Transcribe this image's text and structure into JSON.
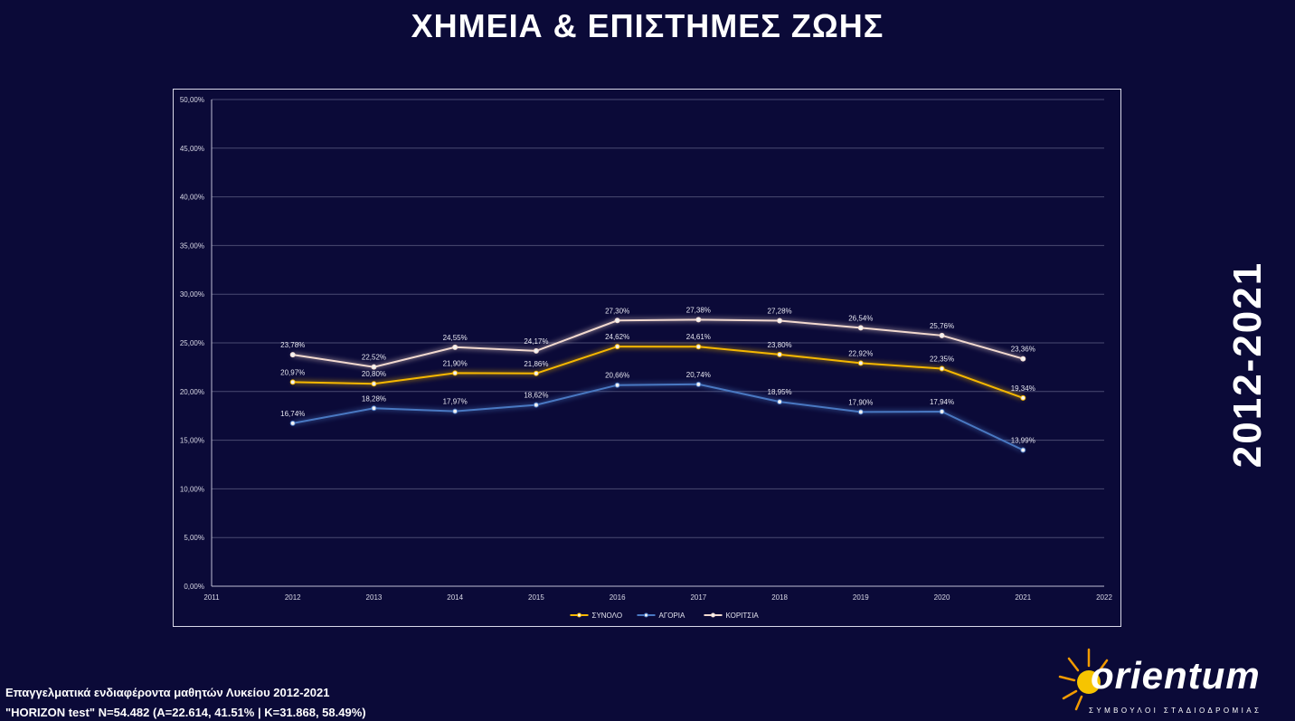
{
  "title": "ΧΗΜΕΙΑ & ΕΠΙΣΤΗΜΕΣ ΖΩΗΣ",
  "side_label": "2012-2021",
  "footer": {
    "line1": "Επαγγελματικά ενδιαφέροντα μαθητών Λυκείου 2012-2021",
    "line2": "\"HORIZON test\" N=54.482 (A=22.614, 41.51% | K=31.868, 58.49%)"
  },
  "logo": {
    "wordmark": "orientum",
    "tagline": "ΣΥΜΒΟΥΛΟΙ ΣΤΑΔΙΟΔΡΟΜΙΑΣ"
  },
  "chart_data": {
    "type": "line",
    "x": [
      2012,
      2013,
      2014,
      2015,
      2016,
      2017,
      2018,
      2019,
      2020,
      2021
    ],
    "xlim": [
      2011,
      2022
    ],
    "x_ticks": [
      "2011",
      "2012",
      "2013",
      "2014",
      "2015",
      "2016",
      "2017",
      "2018",
      "2019",
      "2020",
      "2021",
      "2022"
    ],
    "ylim": [
      0,
      50
    ],
    "y_ticks": [
      "0,00%",
      "5,00%",
      "10,00%",
      "15,00%",
      "20,00%",
      "25,00%",
      "30,00%",
      "35,00%",
      "40,00%",
      "45,00%",
      "50,00%"
    ],
    "grid": true,
    "legend_position": "bottom",
    "series": [
      {
        "name": "ΣΥΝΟΛΟ",
        "color": "#f5b700",
        "values": [
          20.97,
          20.8,
          21.9,
          21.86,
          24.62,
          24.61,
          23.8,
          22.92,
          22.35,
          19.34
        ],
        "labels": [
          "20,97%",
          "20,80%",
          "21,90%",
          "21,86%",
          "24,62%",
          "24,61%",
          "23,80%",
          "22,92%",
          "22,35%",
          "19,34%"
        ]
      },
      {
        "name": "ΑΓΟΡΙΑ",
        "color": "#4a78c2",
        "values": [
          16.74,
          18.28,
          17.97,
          18.62,
          20.66,
          20.74,
          18.95,
          17.9,
          17.94,
          13.99
        ],
        "labels": [
          "16,74%",
          "18,28%",
          "17,97%",
          "18,62%",
          "20,66%",
          "20,74%",
          "18,95%",
          "17,90%",
          "17,94%",
          "13,99%"
        ]
      },
      {
        "name": "ΚΟΡΙΤΣΙΑ",
        "color": "#f2d9cf",
        "values": [
          23.78,
          22.52,
          24.55,
          24.17,
          27.3,
          27.38,
          27.28,
          26.54,
          25.76,
          23.36
        ],
        "labels": [
          "23,78%",
          "22,52%",
          "24,55%",
          "24,17%",
          "27,30%",
          "27,38%",
          "27,28%",
          "26,54%",
          "25,76%",
          "23,36%"
        ]
      }
    ]
  }
}
